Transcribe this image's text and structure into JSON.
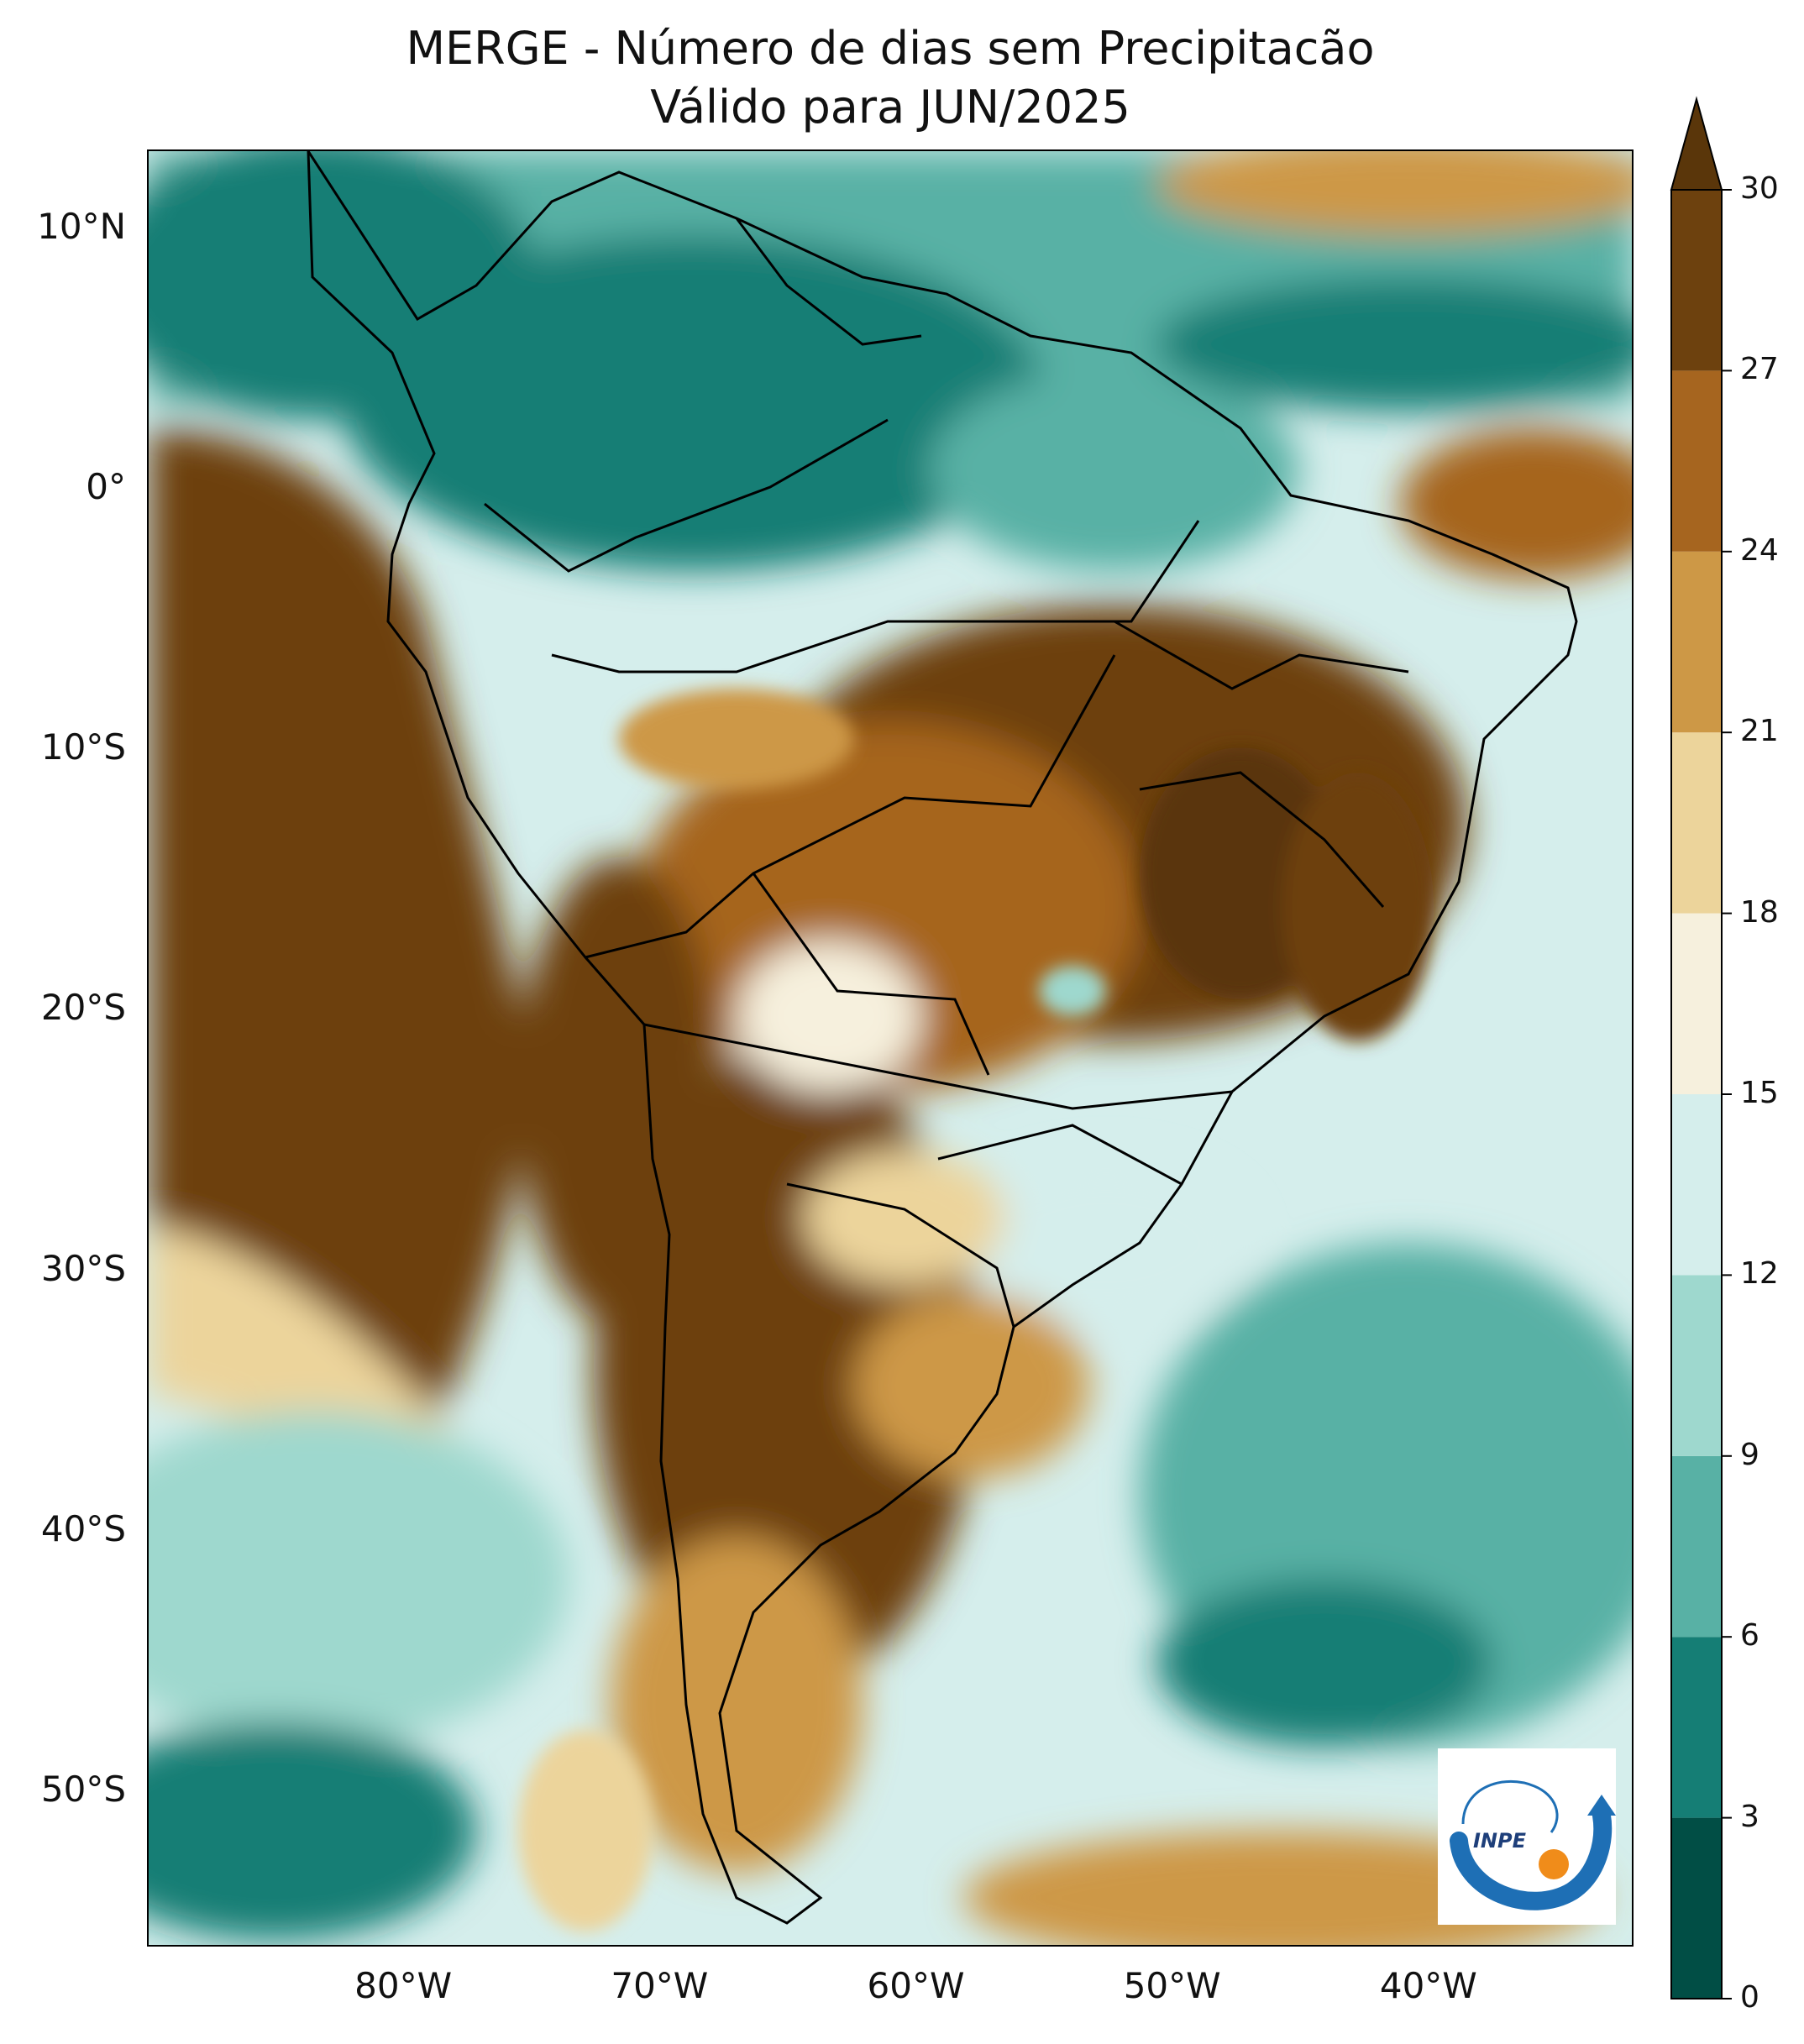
{
  "title": {
    "line1": "MERGE - Número de dias sem Precipitacão",
    "line2": "Válido para JUN/2025"
  },
  "map": {
    "lon_range": [
      -90,
      -32
    ],
    "lat_range": [
      -56,
      13
    ],
    "lat_ticks": [
      {
        "value": 10,
        "label": "10°N"
      },
      {
        "value": 0,
        "label": "0°"
      },
      {
        "value": -10,
        "label": "10°S"
      },
      {
        "value": -20,
        "label": "20°S"
      },
      {
        "value": -30,
        "label": "30°S"
      },
      {
        "value": -40,
        "label": "40°S"
      },
      {
        "value": -50,
        "label": "50°S"
      }
    ],
    "lon_ticks": [
      {
        "value": -80,
        "label": "80°W"
      },
      {
        "value": -70,
        "label": "70°W"
      },
      {
        "value": -60,
        "label": "60°W"
      },
      {
        "value": -50,
        "label": "50°W"
      },
      {
        "value": -40,
        "label": "40°W"
      }
    ]
  },
  "colorbar": {
    "levels": [
      0,
      3,
      6,
      9,
      12,
      15,
      18,
      21,
      24,
      27,
      30
    ],
    "labels": [
      "0",
      "3",
      "6",
      "9",
      "12",
      "15",
      "18",
      "21",
      "24",
      "27",
      "30"
    ],
    "colors": [
      "#014e45",
      "#157e75",
      "#58b1a5",
      "#9ed8ce",
      "#d5eeec",
      "#f6f0dd",
      "#ecd49b",
      "#cd9846",
      "#a6651f",
      "#6d410e"
    ],
    "extend_color": "#5a360a"
  },
  "logo": {
    "text": "INPE"
  }
}
